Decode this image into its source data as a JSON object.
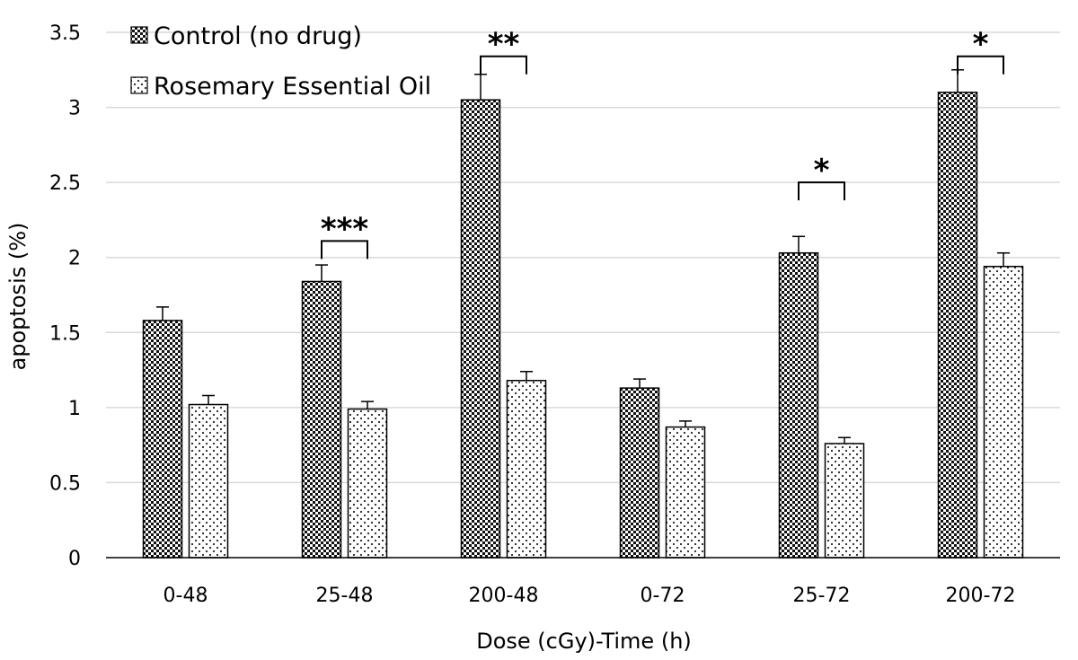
{
  "chart_data": {
    "type": "bar",
    "title": "",
    "xlabel": "Dose (cGy)-Time (h)",
    "ylabel": "apoptosis (%)",
    "ylim": [
      0,
      3.5
    ],
    "yticks": [
      "0",
      "0.5",
      "1",
      "1.5",
      "2",
      "2.5",
      "3",
      "3.5"
    ],
    "categories": [
      "0-48",
      "25-48",
      "200-48",
      "0-72",
      "25-72",
      "200-72"
    ],
    "series": [
      {
        "name": "Control (no drug)",
        "pattern": "checker",
        "values": [
          1.58,
          1.84,
          3.05,
          1.13,
          2.03,
          3.1
        ],
        "errors": [
          0.09,
          0.11,
          0.17,
          0.06,
          0.11,
          0.15
        ]
      },
      {
        "name": "Rosemary Essential Oil",
        "pattern": "dots",
        "values": [
          1.02,
          0.99,
          1.18,
          0.87,
          0.76,
          1.94
        ],
        "errors": [
          0.06,
          0.05,
          0.06,
          0.04,
          0.04,
          0.09
        ]
      }
    ],
    "significance": [
      {
        "category": "25-48",
        "label": "***",
        "level": 2.11
      },
      {
        "category": "200-48",
        "label": "**",
        "level": 3.34
      },
      {
        "category": "25-72",
        "label": "*",
        "level": 2.5
      },
      {
        "category": "200-72",
        "label": "*",
        "level": 3.34
      }
    ],
    "grid": true,
    "legend_position": "top-left",
    "colors": {
      "bar_stroke": "#000000",
      "bar_fill": "#ffffff",
      "grid": "#d9d9d9",
      "axis": "#000000"
    }
  }
}
